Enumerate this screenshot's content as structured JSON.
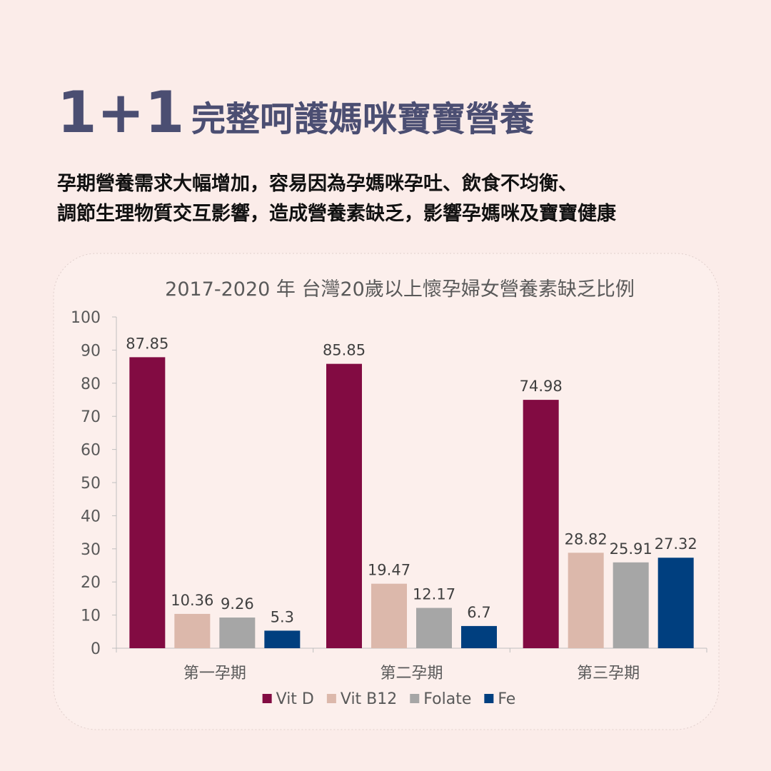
{
  "header": {
    "number": "1+1",
    "title": "完整呵護媽咪寶寶營養",
    "lines": [
      "孕期營養需求大幅增加，容易因為孕媽咪孕吐、飲食不均衡、",
      "調節生理物質交互影響，造成營養素缺乏，影響孕媽咪及寶寶健康"
    ]
  },
  "chart_data": {
    "type": "bar",
    "title": "2017-2020 年 台灣20歲以上懷孕婦女營養素缺乏比例",
    "categories": [
      "第一孕期",
      "第二孕期",
      "第三孕期"
    ],
    "series": [
      {
        "name": "Vit D",
        "color": "#820b42",
        "values": [
          87.85,
          85.85,
          74.98
        ]
      },
      {
        "name": "Vit B12",
        "color": "#dcb8ab",
        "values": [
          10.36,
          19.47,
          28.82
        ]
      },
      {
        "name": "Folate",
        "color": "#a6a6a6",
        "values": [
          9.26,
          12.17,
          25.91
        ]
      },
      {
        "name": "Fe",
        "color": "#003f7f",
        "values": [
          5.3,
          6.7,
          27.32
        ]
      }
    ],
    "ylim": [
      0,
      100
    ],
    "yticks": [
      0,
      10,
      20,
      30,
      40,
      50,
      60,
      70,
      80,
      90,
      100
    ],
    "grid": false,
    "legend": "bottom"
  }
}
